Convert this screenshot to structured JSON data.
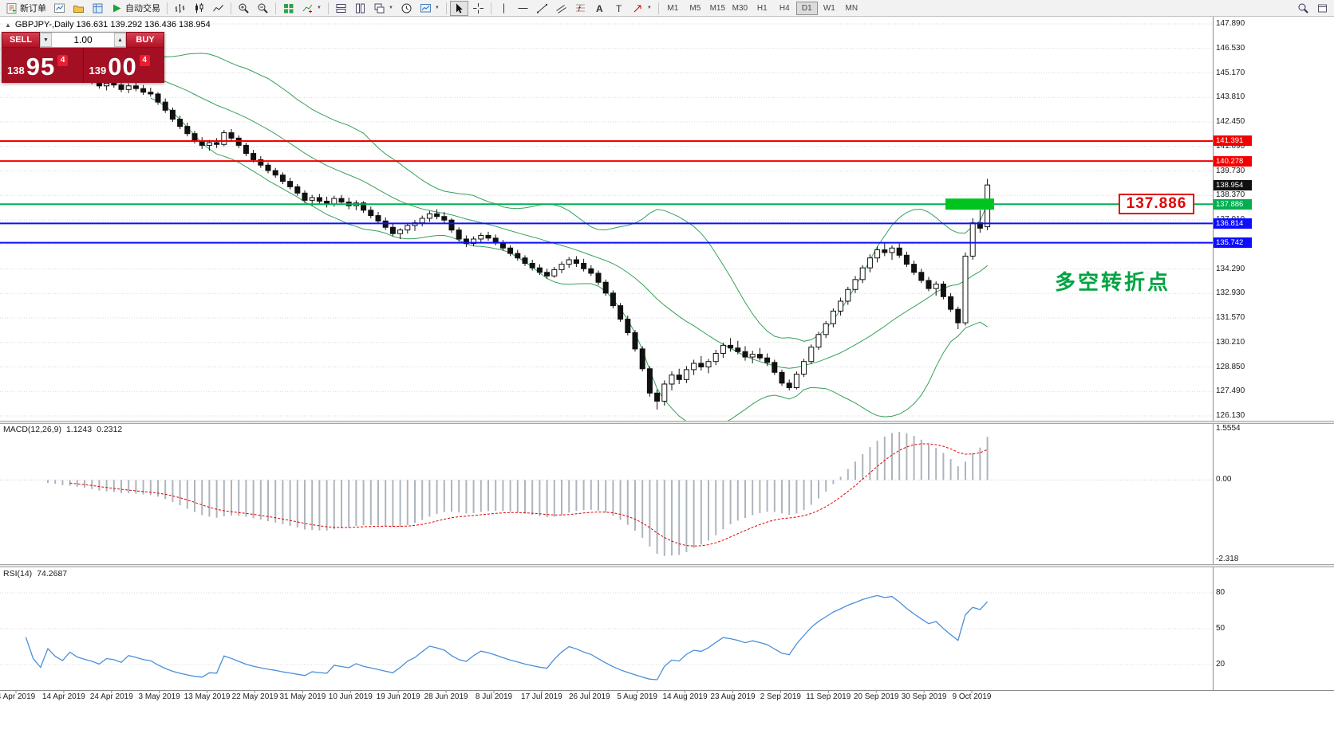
{
  "toolbar": {
    "new_order_label": "新订单",
    "auto_trading_label": "自动交易",
    "timeframes": [
      "M1",
      "M5",
      "M15",
      "M30",
      "H1",
      "H4",
      "D1",
      "W1",
      "MN"
    ],
    "active_timeframe": "D1"
  },
  "chart_header": {
    "caption": "GBPJPY-,Daily  136.631 139.292 136.436 138.954"
  },
  "trade_panel": {
    "sell_label": "SELL",
    "buy_label": "BUY",
    "volume": "1.00",
    "bid": {
      "small": "138",
      "big": "95",
      "sup": "4"
    },
    "ask": {
      "small": "139",
      "big": "00",
      "sup": "4"
    }
  },
  "annotations": {
    "pivot_callout": "137.886",
    "turning_point": "多空转折点",
    "turning_point_color": "#00a341",
    "callout_color": "#e10000",
    "highlight_color": "#00c41e"
  },
  "price_axis": [
    "147.890",
    "146.530",
    "145.170",
    "143.810",
    "142.450",
    "141.090",
    "139.730",
    "138.370",
    "137.010",
    "135.650",
    "134.290",
    "132.930",
    "131.570",
    "130.210",
    "128.850",
    "127.490",
    "126.130"
  ],
  "dates": [
    "4 Apr 2019",
    "14 Apr 2019",
    "24 Apr 2019",
    "3 May 2019",
    "13 May 2019",
    "22 May 2019",
    "31 May 2019",
    "10 Jun 2019",
    "19 Jun 2019",
    "28 Jun 2019",
    "8 Jul 2019",
    "17 Jul 2019",
    "26 Jul 2019",
    "5 Aug 2019",
    "14 Aug 2019",
    "23 Aug 2019",
    "2 Sep 2019",
    "11 Sep 2019",
    "20 Sep 2019",
    "30 Sep 2019",
    "9 Oct 2019"
  ],
  "levels": [
    {
      "name": "resistance-upper",
      "label": "141.391",
      "value": 141.391,
      "color": "#f40000",
      "line": true
    },
    {
      "name": "resistance-lower",
      "label": "140.278",
      "value": 140.278,
      "color": "#f40000",
      "line": true
    },
    {
      "name": "current-price",
      "label": "138.954",
      "value": 138.954,
      "color": "#101010",
      "line": false
    },
    {
      "name": "pivot-zone",
      "label": "137.886",
      "value": 137.886,
      "color": "#00b050",
      "line": true
    },
    {
      "name": "support-upper",
      "label": "136.814",
      "value": 136.814,
      "color": "#0d0dff",
      "line": true
    },
    {
      "name": "support-lower",
      "label": "135.742",
      "value": 135.742,
      "color": "#0d0dff",
      "line": true
    }
  ],
  "macd": {
    "name": "MACD(12,26,9)",
    "value": "1.1243",
    "signal_value": "0.2312",
    "scale_max": "1.5554",
    "scale_zero": "0.00",
    "scale_min": "-2.318"
  },
  "rsi": {
    "name": "RSI(14)",
    "value": "74.2687",
    "levels": [
      "80",
      "50",
      "20"
    ]
  },
  "chart_data": {
    "type": "candlestick",
    "symbol": "GBPJPY-",
    "timeframe": "Daily",
    "current_bar": {
      "open": 136.631,
      "high": 139.292,
      "low": 136.436,
      "close": 138.954
    },
    "ylim": [
      126.13,
      147.89
    ],
    "horizontal_lines": [
      141.391,
      140.278,
      137.886,
      136.814,
      135.742
    ],
    "bollinger": {
      "period": 20,
      "deviation": 2
    },
    "macd_params": {
      "fast": 12,
      "slow": 26,
      "signal": 9
    },
    "macd_current": [
      1.1243,
      0.2312
    ],
    "rsi_period": 14,
    "rsi_current": 74.2687,
    "candles_ohlc": [
      [
        145.8,
        146.1,
        145.55,
        145.9
      ],
      [
        145.9,
        146.15,
        145.6,
        145.7
      ],
      [
        145.7,
        145.95,
        145.4,
        145.85
      ],
      [
        145.85,
        146.05,
        145.5,
        145.6
      ],
      [
        145.6,
        145.8,
        145.2,
        145.35
      ],
      [
        145.35,
        145.7,
        145.1,
        145.55
      ],
      [
        145.55,
        145.75,
        145.15,
        145.3
      ],
      [
        145.3,
        145.55,
        144.95,
        145.1
      ],
      [
        145.1,
        145.4,
        144.85,
        145.25
      ],
      [
        145.25,
        145.45,
        144.9,
        145.0
      ],
      [
        145.0,
        145.2,
        144.7,
        144.85
      ],
      [
        144.85,
        145.05,
        144.55,
        144.7
      ],
      [
        144.7,
        144.9,
        144.3,
        144.45
      ],
      [
        144.45,
        144.75,
        144.2,
        144.6
      ],
      [
        144.6,
        144.85,
        144.35,
        144.5
      ],
      [
        144.5,
        144.7,
        144.1,
        144.25
      ],
      [
        144.25,
        144.6,
        144.05,
        144.45
      ],
      [
        144.45,
        144.65,
        144.15,
        144.3
      ],
      [
        144.3,
        144.5,
        143.95,
        144.1
      ],
      [
        144.1,
        144.35,
        143.85,
        144.0
      ],
      [
        144.0,
        144.1,
        143.4,
        143.55
      ],
      [
        143.55,
        143.75,
        142.95,
        143.1
      ],
      [
        143.1,
        143.25,
        142.45,
        142.6
      ],
      [
        142.6,
        142.8,
        142.05,
        142.2
      ],
      [
        142.2,
        142.4,
        141.65,
        141.8
      ],
      [
        141.8,
        141.95,
        141.25,
        141.4
      ],
      [
        141.4,
        141.6,
        140.95,
        141.15
      ],
      [
        141.15,
        141.45,
        140.85,
        141.3
      ],
      [
        141.3,
        141.55,
        141.0,
        141.2
      ],
      [
        141.2,
        142.0,
        141.1,
        141.85
      ],
      [
        141.85,
        142.05,
        141.4,
        141.55
      ],
      [
        141.55,
        141.7,
        141.0,
        141.15
      ],
      [
        141.15,
        141.3,
        140.55,
        140.7
      ],
      [
        140.7,
        140.9,
        140.2,
        140.35
      ],
      [
        140.35,
        140.55,
        139.9,
        140.05
      ],
      [
        140.05,
        140.2,
        139.6,
        139.75
      ],
      [
        139.75,
        139.9,
        139.35,
        139.5
      ],
      [
        139.5,
        139.65,
        139.0,
        139.15
      ],
      [
        139.15,
        139.35,
        138.7,
        138.85
      ],
      [
        138.85,
        139.0,
        138.35,
        138.5
      ],
      [
        138.5,
        138.65,
        137.95,
        138.1
      ],
      [
        138.1,
        138.4,
        137.8,
        138.25
      ],
      [
        138.25,
        138.45,
        137.9,
        138.05
      ],
      [
        138.05,
        138.3,
        137.7,
        137.9
      ],
      [
        137.9,
        138.35,
        137.75,
        138.2
      ],
      [
        138.2,
        138.4,
        137.85,
        138.0
      ],
      [
        138.0,
        138.25,
        137.6,
        137.8
      ],
      [
        137.8,
        138.1,
        137.55,
        137.95
      ],
      [
        137.95,
        138.05,
        137.4,
        137.55
      ],
      [
        137.55,
        137.75,
        137.1,
        137.25
      ],
      [
        137.25,
        137.45,
        136.8,
        136.95
      ],
      [
        136.95,
        137.15,
        136.45,
        136.6
      ],
      [
        136.6,
        136.8,
        136.1,
        136.25
      ],
      [
        136.25,
        136.55,
        135.95,
        136.45
      ],
      [
        136.45,
        136.85,
        136.25,
        136.7
      ],
      [
        136.7,
        137.0,
        136.4,
        136.85
      ],
      [
        136.85,
        137.25,
        136.65,
        137.1
      ],
      [
        137.1,
        137.5,
        136.9,
        137.35
      ],
      [
        137.35,
        137.6,
        137.05,
        137.2
      ],
      [
        137.2,
        137.45,
        136.85,
        137.0
      ],
      [
        137.0,
        137.1,
        136.3,
        136.45
      ],
      [
        136.45,
        136.6,
        135.8,
        135.95
      ],
      [
        135.95,
        136.15,
        135.5,
        135.7
      ],
      [
        135.7,
        136.1,
        135.55,
        135.95
      ],
      [
        135.95,
        136.3,
        135.75,
        136.15
      ],
      [
        136.15,
        136.35,
        135.85,
        136.0
      ],
      [
        136.0,
        136.2,
        135.6,
        135.75
      ],
      [
        135.75,
        135.9,
        135.3,
        135.45
      ],
      [
        135.45,
        135.6,
        135.0,
        135.15
      ],
      [
        135.15,
        135.35,
        134.75,
        134.9
      ],
      [
        134.9,
        135.05,
        134.45,
        134.6
      ],
      [
        134.6,
        134.8,
        134.2,
        134.35
      ],
      [
        134.35,
        134.55,
        133.95,
        134.1
      ],
      [
        134.1,
        134.3,
        133.75,
        133.9
      ],
      [
        133.9,
        134.4,
        133.8,
        134.25
      ],
      [
        134.25,
        134.7,
        134.05,
        134.55
      ],
      [
        134.55,
        134.95,
        134.35,
        134.8
      ],
      [
        134.8,
        135.0,
        134.4,
        134.6
      ],
      [
        134.6,
        134.85,
        134.15,
        134.3
      ],
      [
        134.3,
        134.5,
        133.9,
        134.05
      ],
      [
        134.05,
        134.2,
        133.4,
        133.55
      ],
      [
        133.55,
        133.7,
        132.8,
        132.95
      ],
      [
        132.95,
        133.1,
        132.1,
        132.25
      ],
      [
        132.25,
        132.4,
        131.35,
        131.5
      ],
      [
        131.5,
        131.7,
        130.6,
        130.75
      ],
      [
        130.75,
        130.9,
        129.7,
        129.85
      ],
      [
        129.85,
        130.0,
        128.6,
        128.75
      ],
      [
        128.75,
        128.9,
        127.2,
        127.4
      ],
      [
        127.4,
        127.6,
        126.48,
        126.95
      ],
      [
        126.95,
        128.1,
        126.7,
        127.9
      ],
      [
        127.9,
        128.6,
        127.55,
        128.4
      ],
      [
        128.4,
        128.75,
        127.9,
        128.15
      ],
      [
        128.15,
        128.9,
        127.95,
        128.7
      ],
      [
        128.7,
        129.25,
        128.4,
        129.05
      ],
      [
        129.05,
        129.45,
        128.65,
        128.85
      ],
      [
        128.85,
        129.3,
        128.5,
        129.15
      ],
      [
        129.15,
        129.8,
        128.95,
        129.6
      ],
      [
        129.6,
        130.2,
        129.35,
        130.05
      ],
      [
        130.05,
        130.45,
        129.7,
        129.9
      ],
      [
        129.9,
        130.3,
        129.55,
        129.7
      ],
      [
        129.7,
        130.0,
        129.2,
        129.4
      ],
      [
        129.4,
        129.75,
        129.05,
        129.55
      ],
      [
        129.55,
        129.9,
        129.2,
        129.35
      ],
      [
        129.35,
        129.6,
        128.9,
        129.1
      ],
      [
        129.1,
        129.25,
        128.4,
        128.55
      ],
      [
        128.55,
        128.7,
        127.8,
        127.95
      ],
      [
        127.95,
        128.15,
        127.55,
        127.7
      ],
      [
        127.7,
        128.6,
        127.6,
        128.45
      ],
      [
        128.45,
        129.3,
        128.3,
        129.15
      ],
      [
        129.15,
        130.1,
        129.0,
        129.95
      ],
      [
        129.95,
        130.8,
        129.8,
        130.65
      ],
      [
        130.65,
        131.4,
        130.45,
        131.25
      ],
      [
        131.25,
        132.1,
        131.05,
        131.95
      ],
      [
        131.95,
        132.7,
        131.7,
        132.5
      ],
      [
        132.5,
        133.3,
        132.3,
        133.15
      ],
      [
        133.15,
        133.9,
        132.95,
        133.7
      ],
      [
        133.7,
        134.5,
        133.5,
        134.35
      ],
      [
        134.35,
        135.1,
        134.1,
        134.9
      ],
      [
        134.9,
        135.55,
        134.65,
        135.35
      ],
      [
        135.35,
        135.75,
        135.0,
        135.2
      ],
      [
        135.2,
        135.6,
        134.8,
        135.45
      ],
      [
        135.45,
        135.7,
        134.9,
        135.05
      ],
      [
        135.05,
        135.25,
        134.4,
        134.55
      ],
      [
        134.55,
        134.75,
        133.95,
        134.1
      ],
      [
        134.1,
        134.3,
        133.5,
        133.65
      ],
      [
        133.65,
        133.85,
        133.05,
        133.2
      ],
      [
        133.2,
        133.6,
        132.8,
        133.45
      ],
      [
        133.45,
        133.6,
        132.6,
        132.75
      ],
      [
        132.75,
        132.95,
        131.9,
        132.05
      ],
      [
        132.05,
        132.2,
        130.95,
        131.3
      ],
      [
        131.3,
        135.2,
        131.15,
        135.0
      ],
      [
        135.0,
        137.1,
        134.8,
        136.85
      ],
      [
        136.85,
        137.55,
        136.3,
        136.55
      ],
      [
        136.63,
        139.29,
        136.44,
        138.95
      ]
    ]
  }
}
